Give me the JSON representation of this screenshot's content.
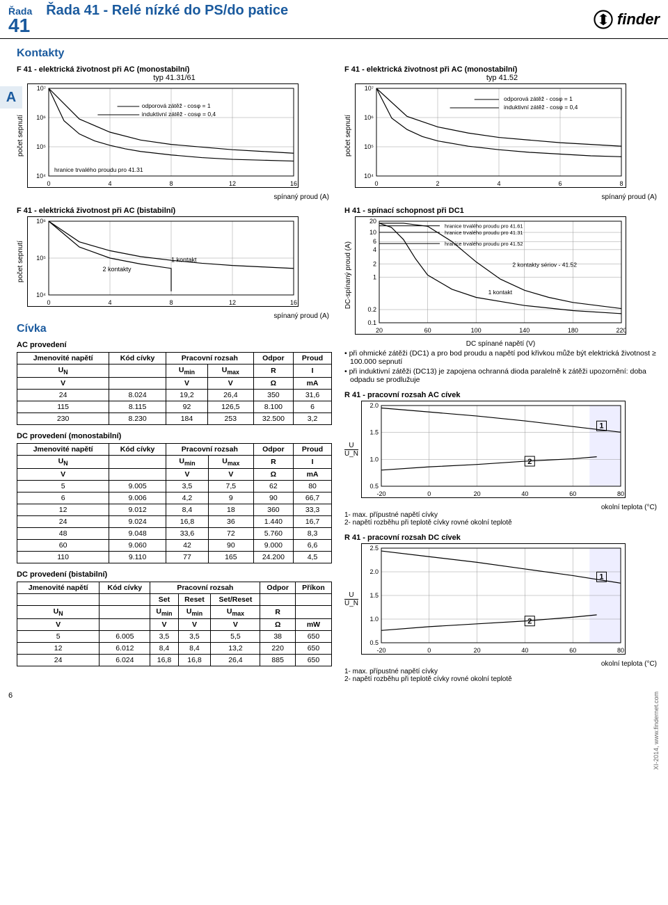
{
  "header": {
    "series_label": "Řada",
    "series_num": "41",
    "title": "Řada 41 - Relé nízké do PS/do patice",
    "logo_text": "finder"
  },
  "side_tab": "A",
  "section_contacts": "Kontakty",
  "section_coil": "Cívka",
  "chart1": {
    "title": "F 41 - elektrická životnost při AC (monostabilní)",
    "sub": "typ 41.31/61",
    "ylabel": "počet sepnutí",
    "xlabel": "spínaný proud (A)",
    "legend1": "odporová zátěž - cosφ = 1",
    "legend2": "induktivní zátěž - cosφ = 0,4",
    "note": "hranice trvalého proudu pro 41.31",
    "xticks": [
      0,
      4,
      8,
      12,
      16
    ],
    "yticks": [
      "10⁴",
      "10⁵",
      "10⁶",
      "10⁷"
    ],
    "curves": {
      "resistive": [
        [
          0,
          1
        ],
        [
          2,
          0.65
        ],
        [
          4,
          0.5
        ],
        [
          6,
          0.41
        ],
        [
          8,
          0.36
        ],
        [
          10,
          0.33
        ],
        [
          12,
          0.3
        ],
        [
          14,
          0.28
        ],
        [
          16,
          0.26
        ]
      ],
      "inductive": [
        [
          0,
          1
        ],
        [
          1,
          0.63
        ],
        [
          2,
          0.48
        ],
        [
          3,
          0.4
        ],
        [
          4,
          0.35
        ],
        [
          5,
          0.31
        ],
        [
          6,
          0.28
        ],
        [
          7,
          0.26
        ],
        [
          8,
          0.24
        ],
        [
          10,
          0.21
        ],
        [
          12,
          0.19
        ],
        [
          14,
          0.18
        ],
        [
          16,
          0.17
        ]
      ]
    },
    "colors": {
      "line": "#000",
      "grid": "#999",
      "bg": "#fff"
    }
  },
  "chart2": {
    "title": "F 41 - elektrická životnost při AC (monostabilní)",
    "sub": "typ 41.52",
    "ylabel": "počet sepnutí",
    "xlabel": "spínaný proud (A)",
    "legend1": "odporová zátěž - cosφ = 1",
    "legend2": "induktivní zátěž - cosφ = 0,4",
    "xticks": [
      0,
      2,
      4,
      6,
      8
    ],
    "yticks": [
      "10⁴",
      "10⁵",
      "10⁶",
      "10⁷"
    ],
    "curves": {
      "resistive": [
        [
          0,
          1
        ],
        [
          1,
          0.68
        ],
        [
          2,
          0.56
        ],
        [
          3,
          0.49
        ],
        [
          4,
          0.44
        ],
        [
          5,
          0.41
        ],
        [
          6,
          0.38
        ],
        [
          7,
          0.36
        ],
        [
          8,
          0.34
        ]
      ],
      "inductive": [
        [
          0,
          1
        ],
        [
          0.5,
          0.66
        ],
        [
          1,
          0.53
        ],
        [
          1.5,
          0.45
        ],
        [
          2,
          0.4
        ],
        [
          3,
          0.34
        ],
        [
          4,
          0.3
        ],
        [
          5,
          0.27
        ],
        [
          6,
          0.25
        ],
        [
          7,
          0.23
        ],
        [
          8,
          0.22
        ]
      ]
    },
    "colors": {
      "line": "#000",
      "grid": "#999",
      "bg": "#fff"
    }
  },
  "chart3": {
    "title": "F 41 - elektrická životnost při AC (bistabilní)",
    "ylabel": "počet sepnutí",
    "xlabel": "spínaný proud (A)",
    "legend1": "2 kontakty",
    "legend2": "1 kontakt",
    "xticks": [
      0,
      4,
      8,
      12,
      16
    ],
    "yticks": [
      "10⁴",
      "10⁵",
      "10⁶"
    ],
    "curves": {
      "c2": [
        [
          0,
          1
        ],
        [
          2,
          0.65
        ],
        [
          4,
          0.5
        ],
        [
          6,
          0.42
        ],
        [
          8,
          0.36
        ],
        [
          8,
          0.05
        ]
      ],
      "c1": [
        [
          0,
          1
        ],
        [
          2,
          0.72
        ],
        [
          4,
          0.6
        ],
        [
          6,
          0.52
        ],
        [
          8,
          0.47
        ],
        [
          10,
          0.43
        ],
        [
          12,
          0.4
        ],
        [
          14,
          0.38
        ],
        [
          16,
          0.36
        ]
      ]
    },
    "colors": {
      "line": "#000",
      "grid": "#999",
      "bg": "#fff"
    }
  },
  "chart4": {
    "title": "H 41 - spínací schopnost při DC1",
    "ylabel": "DC-spínaný proud (A)",
    "xlabel": "DC spínané napětí (V)",
    "leg_a": "hranice trvalého proudu pro 41.61",
    "leg_b": "hranice trvalého proudu pro 41.31",
    "leg_c": "hranice trvalého proudu pro 41.52",
    "leg_d": "2 kontakty sériov - 41.52",
    "leg_e": "1 kontakt",
    "xticks": [
      20,
      60,
      100,
      140,
      180,
      220
    ],
    "yticks": [
      0.1,
      0.2,
      1,
      2,
      4,
      6,
      10,
      20
    ],
    "curves": {
      "main": [
        [
          20,
          0.98
        ],
        [
          30,
          0.94
        ],
        [
          40,
          0.82
        ],
        [
          50,
          0.63
        ],
        [
          60,
          0.47
        ],
        [
          80,
          0.33
        ],
        [
          100,
          0.25
        ],
        [
          140,
          0.17
        ],
        [
          180,
          0.12
        ],
        [
          220,
          0.09
        ]
      ],
      "series2": [
        [
          20,
          0.98
        ],
        [
          40,
          0.98
        ],
        [
          60,
          0.95
        ],
        [
          80,
          0.8
        ],
        [
          100,
          0.6
        ],
        [
          120,
          0.43
        ],
        [
          140,
          0.32
        ],
        [
          160,
          0.25
        ],
        [
          180,
          0.2
        ],
        [
          200,
          0.17
        ],
        [
          220,
          0.14
        ]
      ]
    },
    "h_lines": {
      "h4161": 0.955,
      "h4131": 0.89,
      "h4152": 0.78
    },
    "colors": {
      "line": "#000",
      "grid": "#999",
      "bg": "#fff"
    }
  },
  "notes_dc1": {
    "n1": "• při ohmické zátěži (DC1) a pro bod proudu a napětí pod křivkou může být elektrická životnost ≥ 100.000 sepnutí",
    "n2": "• při induktivní zátěži (DC13) je zapojena ochranná dioda paralelně k zátěži upozornění: doba odpadu se prodlužuje"
  },
  "table_ac": {
    "title": "AC provedení",
    "headers": [
      "Jmenovité napětí",
      "Kód cívky",
      "Pracovní rozsah",
      "",
      "Odpor",
      "Proud"
    ],
    "sub": [
      "U_N",
      "",
      "U_min",
      "U_max",
      "R",
      "I"
    ],
    "units": [
      "V",
      "",
      "V",
      "V",
      "Ω",
      "mA"
    ],
    "rows": [
      [
        "24",
        "8.024",
        "19,2",
        "26,4",
        "350",
        "31,6"
      ],
      [
        "115",
        "8.115",
        "92",
        "126,5",
        "8.100",
        "6"
      ],
      [
        "230",
        "8.230",
        "184",
        "253",
        "32.500",
        "3,2"
      ]
    ]
  },
  "table_dc_mono": {
    "title": "DC provedení (monostabilní)",
    "headers": [
      "Jmenovité napětí",
      "Kód cívky",
      "Pracovní rozsah",
      "",
      "Odpor",
      "Proud"
    ],
    "sub": [
      "U_N",
      "",
      "U_min",
      "U_max",
      "R",
      "I"
    ],
    "units": [
      "V",
      "",
      "V",
      "V",
      "Ω",
      "mA"
    ],
    "rows": [
      [
        "5",
        "9.005",
        "3,5",
        "7,5",
        "62",
        "80"
      ],
      [
        "6",
        "9.006",
        "4,2",
        "9",
        "90",
        "66,7"
      ],
      [
        "12",
        "9.012",
        "8,4",
        "18",
        "360",
        "33,3"
      ],
      [
        "24",
        "9.024",
        "16,8",
        "36",
        "1.440",
        "16,7"
      ],
      [
        "48",
        "9.048",
        "33,6",
        "72",
        "5.760",
        "8,3"
      ],
      [
        "60",
        "9.060",
        "42",
        "90",
        "9.000",
        "6,6"
      ],
      [
        "110",
        "9.110",
        "77",
        "165",
        "24.200",
        "4,5"
      ]
    ]
  },
  "table_dc_bi": {
    "title": "DC provedení (bistabilní)",
    "headers": [
      "Jmenovité napětí",
      "Kód cívky",
      "Pracovní rozsah",
      "",
      "",
      "Odpor",
      "Příkon"
    ],
    "sub2": [
      "",
      "",
      "Set",
      "Reset",
      "Set/Reset",
      "",
      ""
    ],
    "sub": [
      "U_N",
      "",
      "U_min",
      "U_min",
      "U_max",
      "R",
      ""
    ],
    "units": [
      "V",
      "",
      "V",
      "V",
      "V",
      "Ω",
      "mW"
    ],
    "rows": [
      [
        "5",
        "6.005",
        "3,5",
        "3,5",
        "5,5",
        "38",
        "650"
      ],
      [
        "12",
        "6.012",
        "8,4",
        "8,4",
        "13,2",
        "220",
        "650"
      ],
      [
        "24",
        "6.024",
        "16,8",
        "16,8",
        "26,4",
        "885",
        "650"
      ]
    ]
  },
  "chart5": {
    "title": "R 41 - pracovní rozsah AC cívek",
    "ylabel": "U / U_N",
    "yratio_u": "U",
    "yratio_un": "U_N",
    "xlabel": "okolní teplota (°C)",
    "xticks": [
      -20,
      0,
      20,
      40,
      60,
      80
    ],
    "yticks": [
      0.5,
      1.0,
      1.5,
      2.0
    ],
    "l1": "1",
    "l2": "2",
    "curves": {
      "c1": [
        [
          -20,
          0.97
        ],
        [
          0,
          0.92
        ],
        [
          20,
          0.87
        ],
        [
          40,
          0.81
        ],
        [
          60,
          0.74
        ],
        [
          80,
          0.67
        ]
      ],
      "c2": [
        [
          -20,
          0.2
        ],
        [
          0,
          0.24
        ],
        [
          20,
          0.27
        ],
        [
          40,
          0.31
        ],
        [
          60,
          0.34
        ],
        [
          70,
          0.365
        ]
      ]
    },
    "shade_box": {
      "x0r": 0.87,
      "x1r": 1.0,
      "y0r": 0.0,
      "y1r": 1.0,
      "color": "#eef"
    },
    "colors": {
      "line": "#000",
      "grid": "#999"
    }
  },
  "chart6": {
    "title": "R 41 - pracovní rozsah DC cívek",
    "yratio_u": "U",
    "yratio_un": "U_N",
    "xlabel": "okolní teplota (°C)",
    "xticks": [
      -20,
      0,
      20,
      40,
      60,
      80
    ],
    "yticks": [
      0.5,
      1.0,
      1.5,
      2.0,
      2.5
    ],
    "l1": "1",
    "l2": "2",
    "curves": {
      "c1": [
        [
          -20,
          0.97
        ],
        [
          0,
          0.91
        ],
        [
          20,
          0.85
        ],
        [
          40,
          0.78
        ],
        [
          60,
          0.71
        ],
        [
          80,
          0.63
        ]
      ],
      "c2": [
        [
          -20,
          0.13
        ],
        [
          0,
          0.17
        ],
        [
          20,
          0.2
        ],
        [
          40,
          0.23
        ],
        [
          60,
          0.27
        ],
        [
          70,
          0.295
        ]
      ]
    },
    "shade_box": {
      "x0r": 0.87,
      "x1r": 1.0,
      "y0r": 0.0,
      "y1r": 1.0,
      "color": "#eef"
    },
    "colors": {
      "line": "#000",
      "grid": "#999"
    }
  },
  "coil_notes": {
    "n1": "1- max. přípustné napětí cívky",
    "n2": "2- napětí rozběhu při teplotě cívky rovné okolní teplotě"
  },
  "page_num": "6",
  "footer_right": "XI-2014, www.findernet.com"
}
